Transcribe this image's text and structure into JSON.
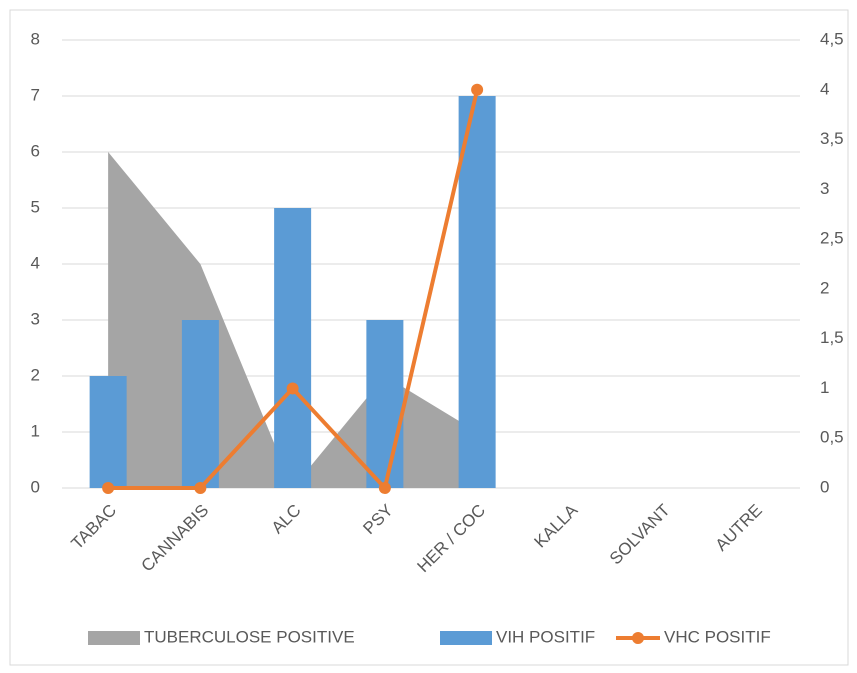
{
  "chart_data": {
    "type": "combo",
    "categories": [
      "TABAC",
      "CANNABIS",
      "ALC",
      "PSY",
      "HER / COC",
      "KALLA",
      "SOLVANT",
      "AUTRE"
    ],
    "series": [
      {
        "name": "TUBERCULOSE POSITIVE",
        "type": "area",
        "color": "#a5a5a5",
        "values": [
          6,
          4,
          0,
          2,
          1,
          null,
          null,
          null
        ]
      },
      {
        "name": "VIH POSITIF",
        "type": "bar",
        "color": "#5b9bd5",
        "values": [
          2,
          3,
          5,
          3,
          7,
          0,
          0,
          0
        ]
      },
      {
        "name": "VHC  POSITIF",
        "type": "line",
        "axis": "y2",
        "color": "#ed7d31",
        "values": [
          0,
          0,
          1,
          0,
          4,
          null,
          null,
          null
        ]
      }
    ],
    "ylim": [
      0,
      8
    ],
    "yticks": [
      0,
      1,
      2,
      3,
      4,
      5,
      6,
      7,
      8
    ],
    "y2lim": [
      0,
      4.5
    ],
    "y2ticks": [
      0,
      {
        "value": 0.5,
        "label": "0,5"
      },
      1,
      {
        "value": 1.5,
        "label": "1,5"
      },
      2,
      {
        "value": 2.5,
        "label": "2,5"
      },
      3,
      {
        "value": 3.5,
        "label": "3,5"
      },
      4,
      {
        "value": 4.5,
        "label": "4,5"
      }
    ],
    "grid": true,
    "legend": "bottom"
  }
}
